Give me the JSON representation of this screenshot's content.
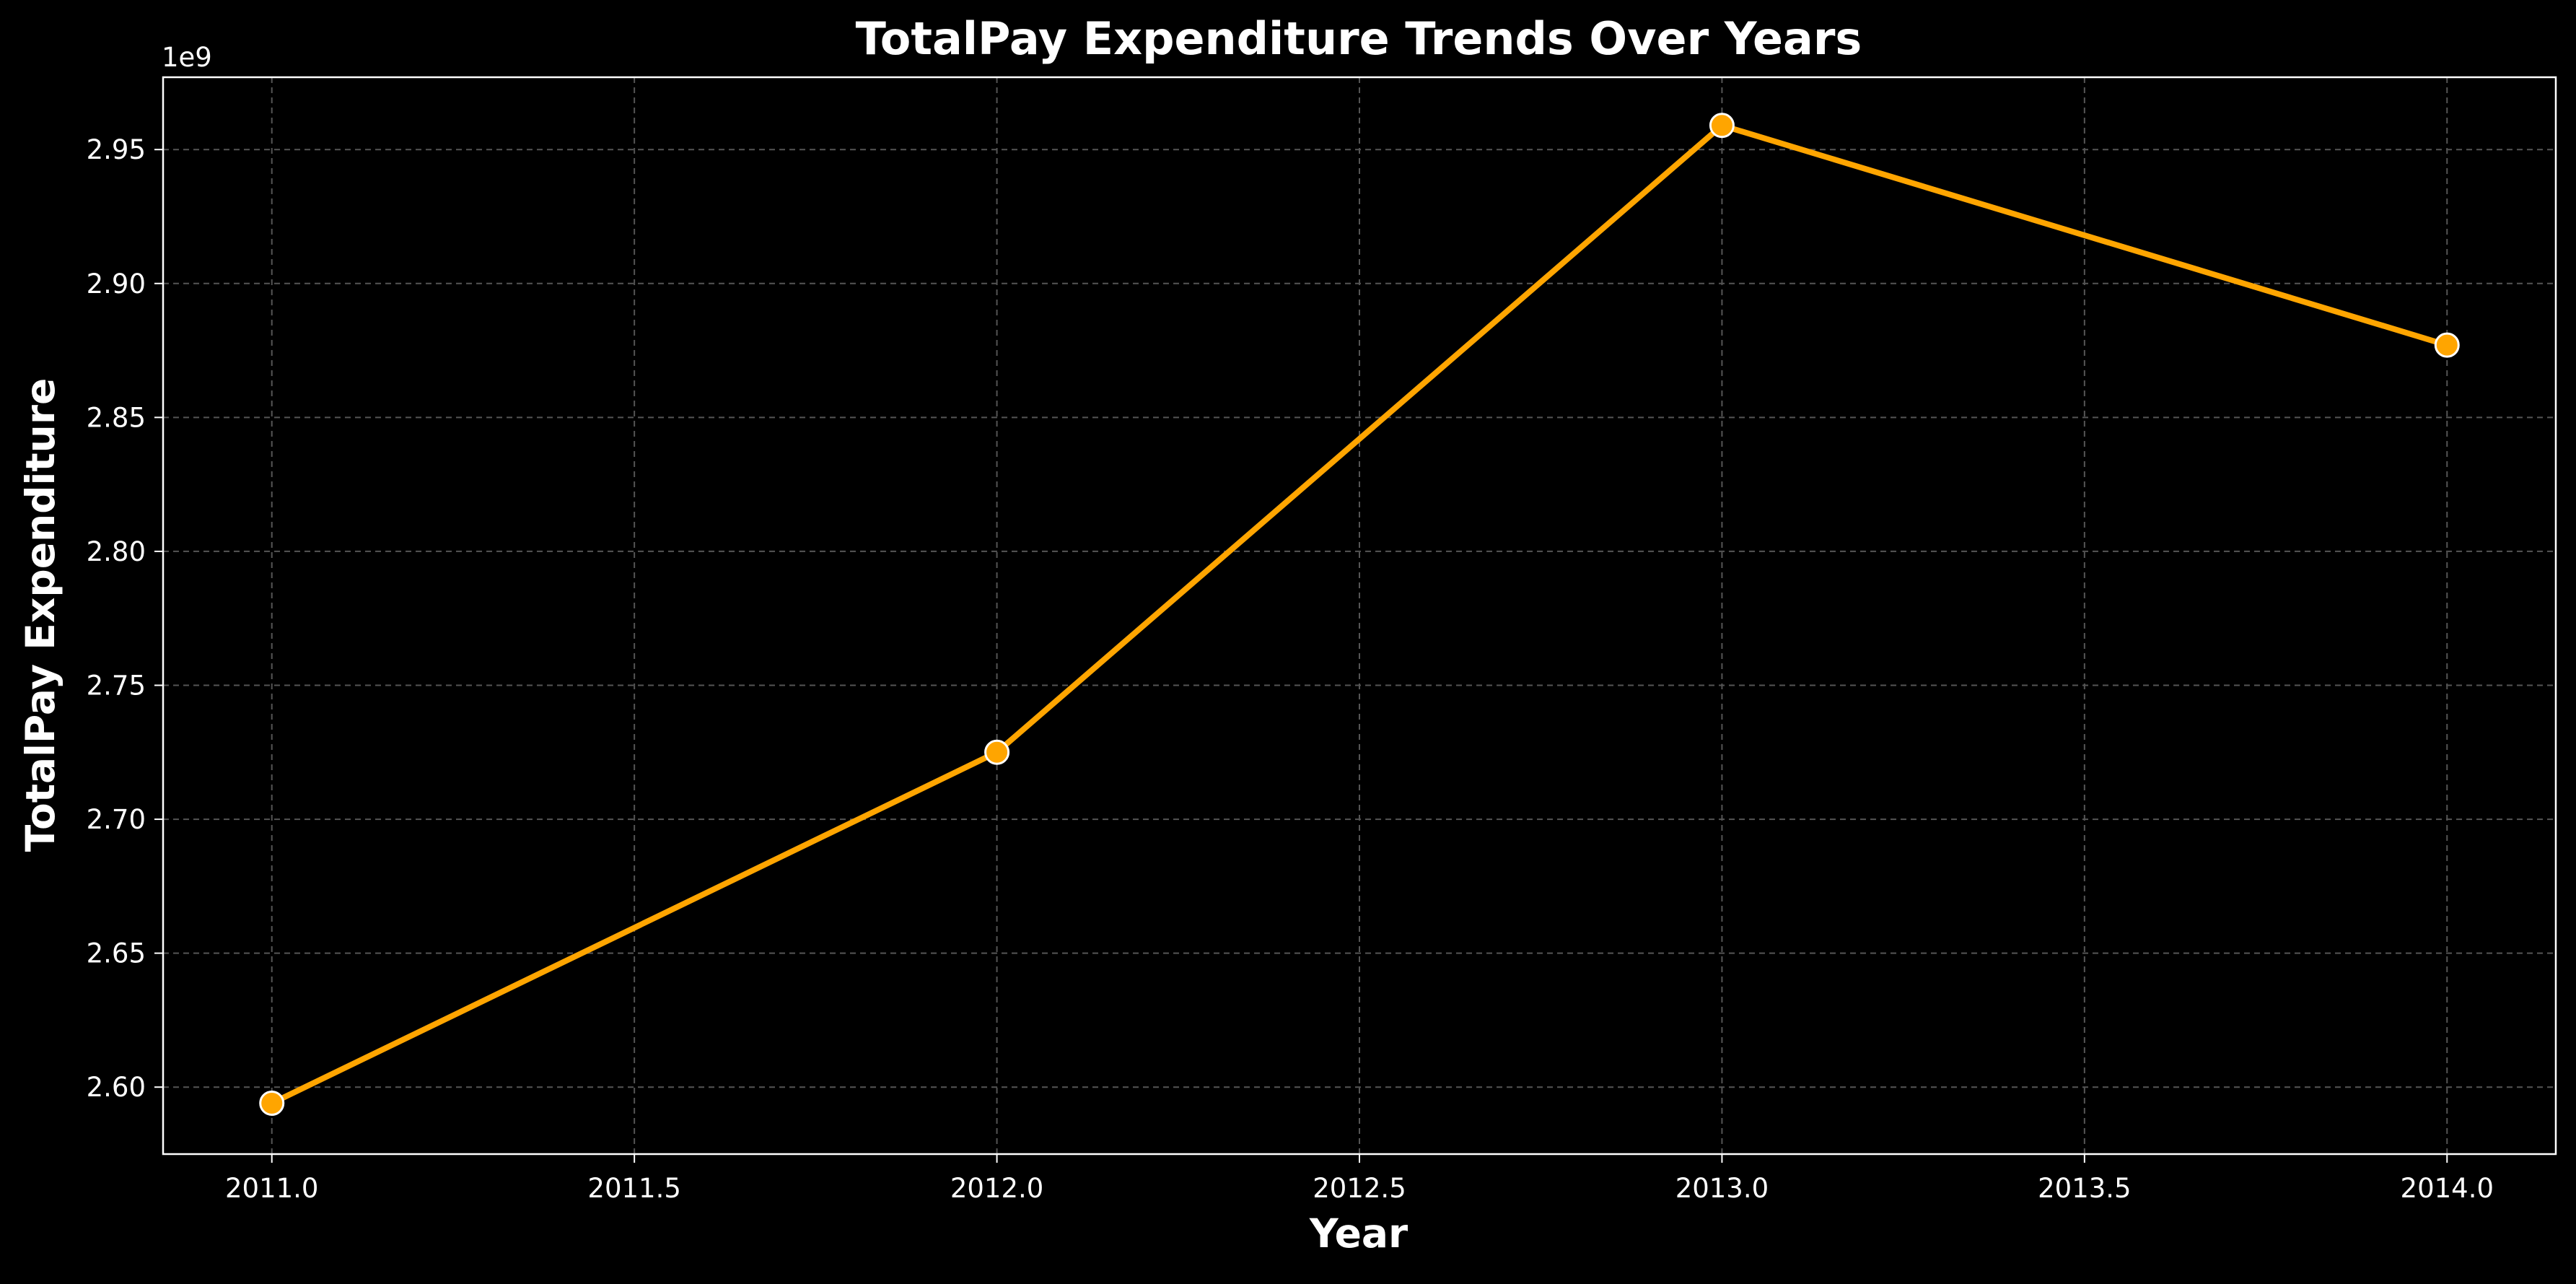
{
  "chart_data": {
    "type": "line",
    "title": "TotalPay Expenditure Trends Over Years",
    "xlabel": "Year",
    "ylabel": "TotalPay Expenditure",
    "y_offset_label": "1e9",
    "xlim": [
      2010.85,
      2014.15
    ],
    "ylim": [
      2.575,
      2.977
    ],
    "x_ticks": [
      2011.0,
      2011.5,
      2012.0,
      2012.5,
      2013.0,
      2013.5,
      2014.0
    ],
    "x_tick_labels": [
      "2011.0",
      "2011.5",
      "2012.0",
      "2012.5",
      "2013.0",
      "2013.5",
      "2014.0"
    ],
    "y_ticks": [
      2.6,
      2.65,
      2.7,
      2.75,
      2.8,
      2.85,
      2.9,
      2.95
    ],
    "y_tick_labels": [
      "2.60",
      "2.65",
      "2.70",
      "2.75",
      "2.80",
      "2.85",
      "2.90",
      "2.95"
    ],
    "grid": true,
    "line_color": "#FFA500",
    "background_color": "#000000",
    "series": [
      {
        "x": [
          2011,
          2012,
          2013,
          2014
        ],
        "values": [
          2.594,
          2.725,
          2.959,
          2.877
        ]
      }
    ]
  }
}
